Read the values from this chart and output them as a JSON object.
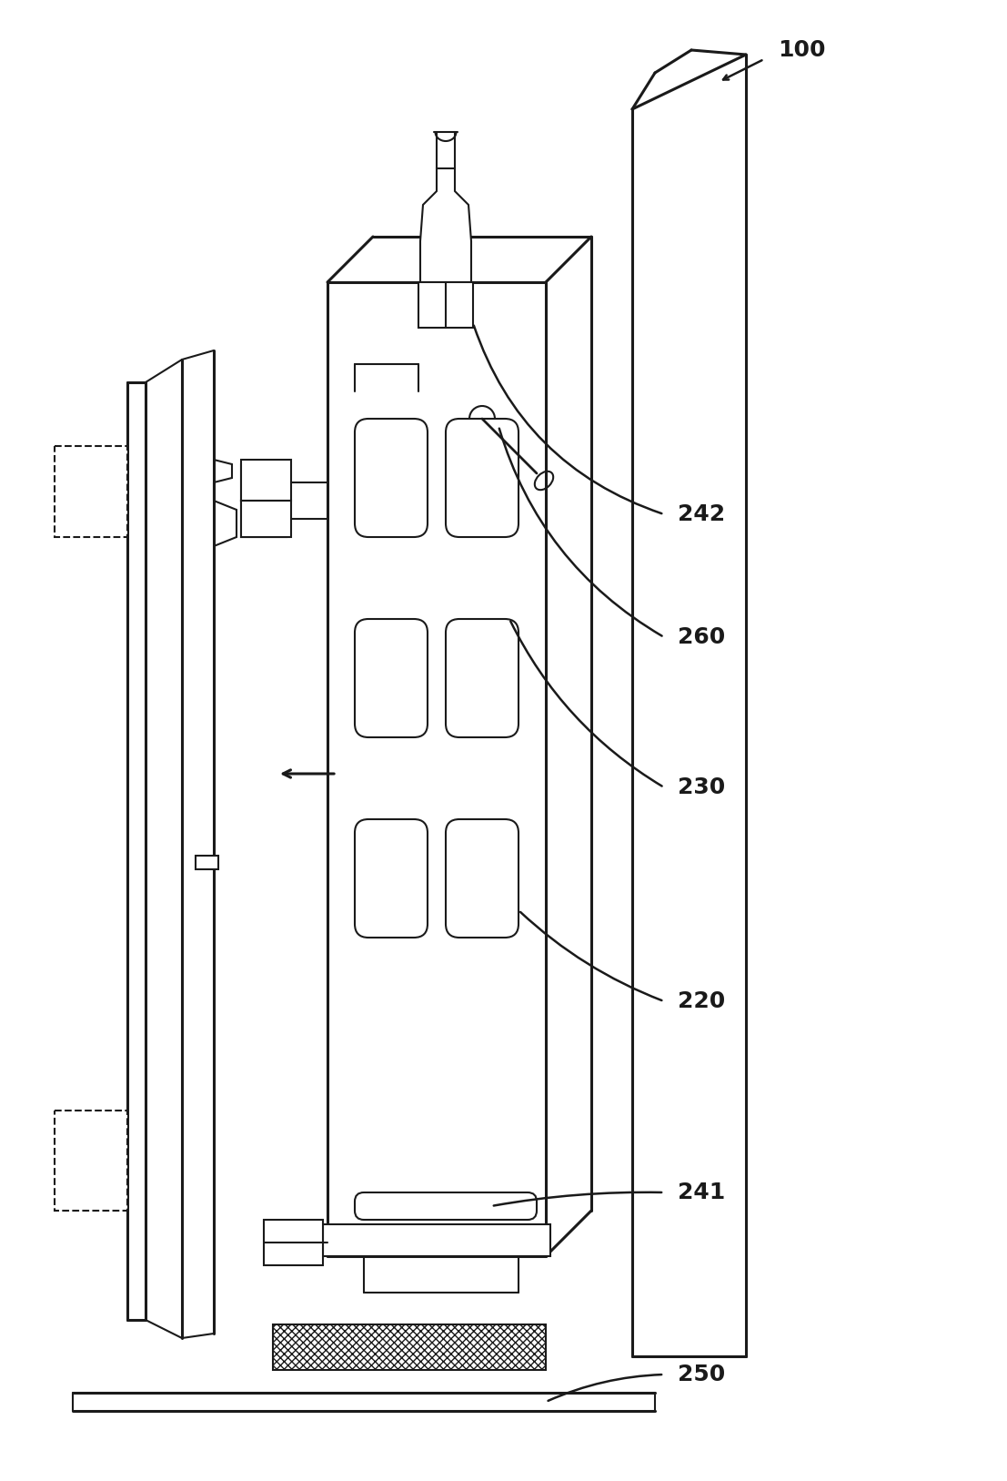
{
  "bg_color": "#ffffff",
  "line_color": "#1a1a1a",
  "lw": 1.5,
  "tlw": 2.2,
  "fig_width": 11.07,
  "fig_height": 16.27,
  "dpi": 100
}
